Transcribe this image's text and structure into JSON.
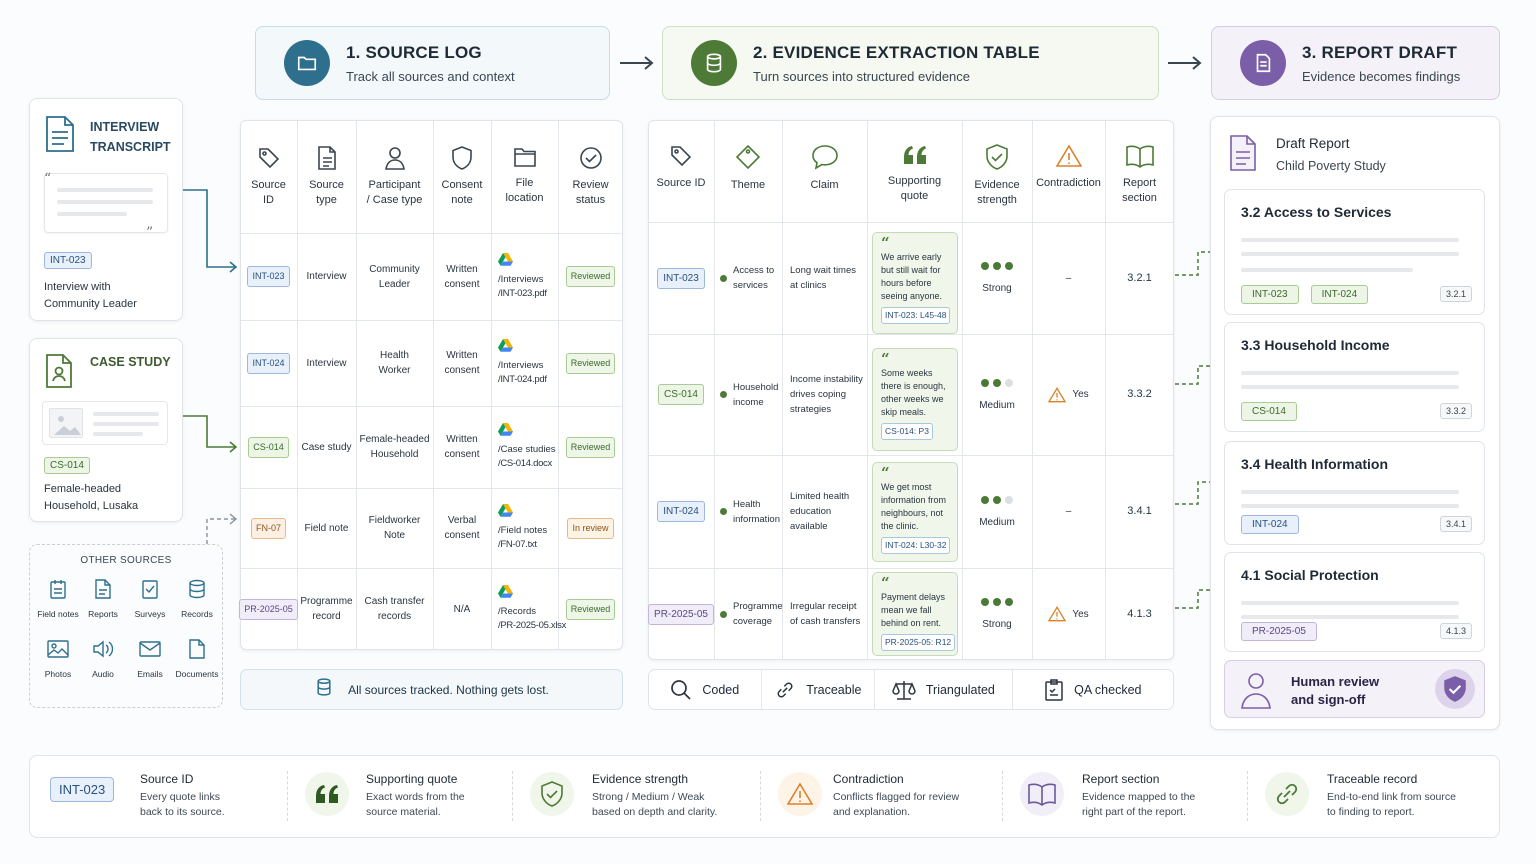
{
  "stages": [
    {
      "title": "1. SOURCE LOG",
      "subtitle": "Track all sources and context"
    },
    {
      "title": "2. EVIDENCE EXTRACTION TABLE",
      "subtitle": "Turn sources into structured evidence"
    },
    {
      "title": "3. REPORT DRAFT",
      "subtitle": "Evidence becomes findings"
    }
  ],
  "sources": {
    "interview": {
      "title_line1": "INTERVIEW",
      "title_line2": "TRANSCRIPT",
      "tag": "INT-023",
      "caption_line1": "Interview with",
      "caption_line2": "Community Leader"
    },
    "case_study": {
      "title": "CASE STUDY",
      "tag": "CS-014",
      "caption_line1": "Female-headed",
      "caption_line2": "Household, Lusaka"
    },
    "other": {
      "title": "OTHER SOURCES",
      "items": [
        {
          "label": "Field notes",
          "icon": "field-notes-icon"
        },
        {
          "label": "Reports",
          "icon": "reports-icon"
        },
        {
          "label": "Surveys",
          "icon": "surveys-icon"
        },
        {
          "label": "Records",
          "icon": "records-icon"
        },
        {
          "label": "Photos",
          "icon": "photos-icon"
        },
        {
          "label": "Audio",
          "icon": "audio-icon"
        },
        {
          "label": "Emails",
          "icon": "emails-icon"
        },
        {
          "label": "Documents",
          "icon": "documents-icon"
        }
      ]
    }
  },
  "source_log": {
    "headers": [
      {
        "l1": "Source",
        "l2": "ID",
        "icon": "tag-icon"
      },
      {
        "l1": "Source",
        "l2": "type",
        "icon": "document-icon"
      },
      {
        "l1": "Participant",
        "l2": "/ Case type",
        "icon": "person-icon"
      },
      {
        "l1": "Consent",
        "l2": "note",
        "icon": "shield-icon"
      },
      {
        "l1": "File",
        "l2": "location",
        "icon": "folder-icon"
      },
      {
        "l1": "Review",
        "l2": "status",
        "icon": "check-circle-icon"
      }
    ],
    "rows": [
      {
        "id": "INT-023",
        "type": "Interview",
        "p1": "Community",
        "p2": "Leader",
        "c1": "Written",
        "c2": "consent",
        "f1": "/Interviews",
        "f2": "/INT-023.pdf",
        "status": "Reviewed"
      },
      {
        "id": "INT-024",
        "type": "Interview",
        "p1": "Health",
        "p2": "Worker",
        "c1": "Written",
        "c2": "consent",
        "f1": "/Interviews",
        "f2": "/INT-024.pdf",
        "status": "Reviewed"
      },
      {
        "id": "CS-014",
        "type": "Case study",
        "p1": "Female-headed",
        "p2": "Household",
        "c1": "Written",
        "c2": "consent",
        "f1": "/Case studies",
        "f2": "/CS-014.docx",
        "status": "Reviewed"
      },
      {
        "id": "FN-07",
        "type": "Field note",
        "p1": "Fieldworker",
        "p2": "Note",
        "c1": "Verbal",
        "c2": "consent",
        "f1": "/Field notes",
        "f2": "/FN-07.txt",
        "status": "In review"
      },
      {
        "id": "PR-2025-05",
        "type": "Programme record",
        "p1": "Cash transfer",
        "p2": "records",
        "c1": "N/A",
        "c2": "",
        "f1": "/Records",
        "f2": "/PR-2025-05.xlsx",
        "status": "Reviewed"
      }
    ],
    "footer": "All sources tracked. Nothing gets lost."
  },
  "evidence": {
    "headers": [
      {
        "l1": "Source ID",
        "l2": "",
        "icon": "tag-icon"
      },
      {
        "l1": "Theme",
        "l2": "",
        "icon": "diamond-tag-icon"
      },
      {
        "l1": "Claim",
        "l2": "",
        "icon": "speech-bubble-icon"
      },
      {
        "l1": "Supporting",
        "l2": "quote",
        "icon": "quote-icon"
      },
      {
        "l1": "Evidence",
        "l2": "strength",
        "icon": "shield-check-icon"
      },
      {
        "l1": "Contradiction",
        "l2": "",
        "icon": "warning-icon"
      },
      {
        "l1": "Report",
        "l2": "section",
        "icon": "book-icon"
      }
    ],
    "rows": [
      {
        "id": "INT-023",
        "theme1": "Access to",
        "theme2": "services",
        "claim1": "Long wait times",
        "claim2": "at clinics",
        "claim3": "",
        "quote": "We arrive early but still wait for hours before seeing anyone.",
        "qref": "INT-023: L45-48",
        "strength": 3,
        "strength_label": "Strong",
        "contradiction": "–",
        "section": "3.2.1"
      },
      {
        "id": "CS-014",
        "theme1": "Household",
        "theme2": "income",
        "claim1": "Income instability",
        "claim2": "drives coping",
        "claim3": "strategies",
        "quote": "Some weeks there is enough, other weeks we skip meals.",
        "qref": "CS-014: P3",
        "strength": 2,
        "strength_label": "Medium",
        "contradiction": "Yes",
        "section": "3.3.2"
      },
      {
        "id": "INT-024",
        "theme1": "Health",
        "theme2": "information",
        "claim1": "Limited health",
        "claim2": "education",
        "claim3": "available",
        "quote": "We get most information from neighbours, not the clinic.",
        "qref": "INT-024: L30-32",
        "strength": 2,
        "strength_label": "Medium",
        "contradiction": "–",
        "section": "3.4.1"
      },
      {
        "id": "PR-2025-05",
        "theme1": "Programme",
        "theme2": "coverage",
        "claim1": "Irregular receipt",
        "claim2": "of cash transfers",
        "claim3": "",
        "quote": "Payment delays mean we fall behind on rent.",
        "qref": "PR-2025-05: R12",
        "strength": 3,
        "strength_label": "Strong",
        "contradiction": "Yes",
        "section": "4.1.3"
      }
    ],
    "footer": [
      "Coded",
      "Traceable",
      "Triangulated",
      "QA checked"
    ]
  },
  "report": {
    "title": "Draft Report",
    "subtitle": "Child Poverty Study",
    "sections": [
      {
        "title": "3.2 Access to Services",
        "tags": [
          "INT-023",
          "INT-024"
        ],
        "ref": "3.2.1"
      },
      {
        "title": "3.3 Household Income",
        "tags": [
          "CS-014"
        ],
        "ref": "3.3.2"
      },
      {
        "title": "3.4 Health Information",
        "tags": [
          "INT-024"
        ],
        "ref": "3.4.1"
      },
      {
        "title": "4.1 Social Protection",
        "tags": [
          "PR-2025-05"
        ],
        "ref": "4.1.3"
      }
    ],
    "signoff_l1": "Human review",
    "signoff_l2": "and sign-off"
  },
  "legend": [
    {
      "title": "Source ID",
      "l1": "Every quote links",
      "l2": "back to its source.",
      "tag": "INT-023"
    },
    {
      "title": "Supporting quote",
      "l1": "Exact words from the",
      "l2": "source material.",
      "icon": "quote-icon"
    },
    {
      "title": "Evidence strength",
      "l1": "Strong / Medium / Weak",
      "l2": "based on depth and clarity.",
      "icon": "shield-check-icon"
    },
    {
      "title": "Contradiction",
      "l1": "Conflicts flagged for review",
      "l2": "and explanation.",
      "icon": "warning-icon"
    },
    {
      "title": "Report section",
      "l1": "Evidence mapped to the",
      "l2": "right part of the report.",
      "icon": "book-icon"
    },
    {
      "title": "Traceable record",
      "l1": "End-to-end link from source",
      "l2": "to finding to report.",
      "icon": "link-icon"
    }
  ],
  "colors": {
    "blue": "#2f6f8f",
    "green": "#4e7a38",
    "purple": "#7a5fa8",
    "orange": "#d9822b"
  }
}
